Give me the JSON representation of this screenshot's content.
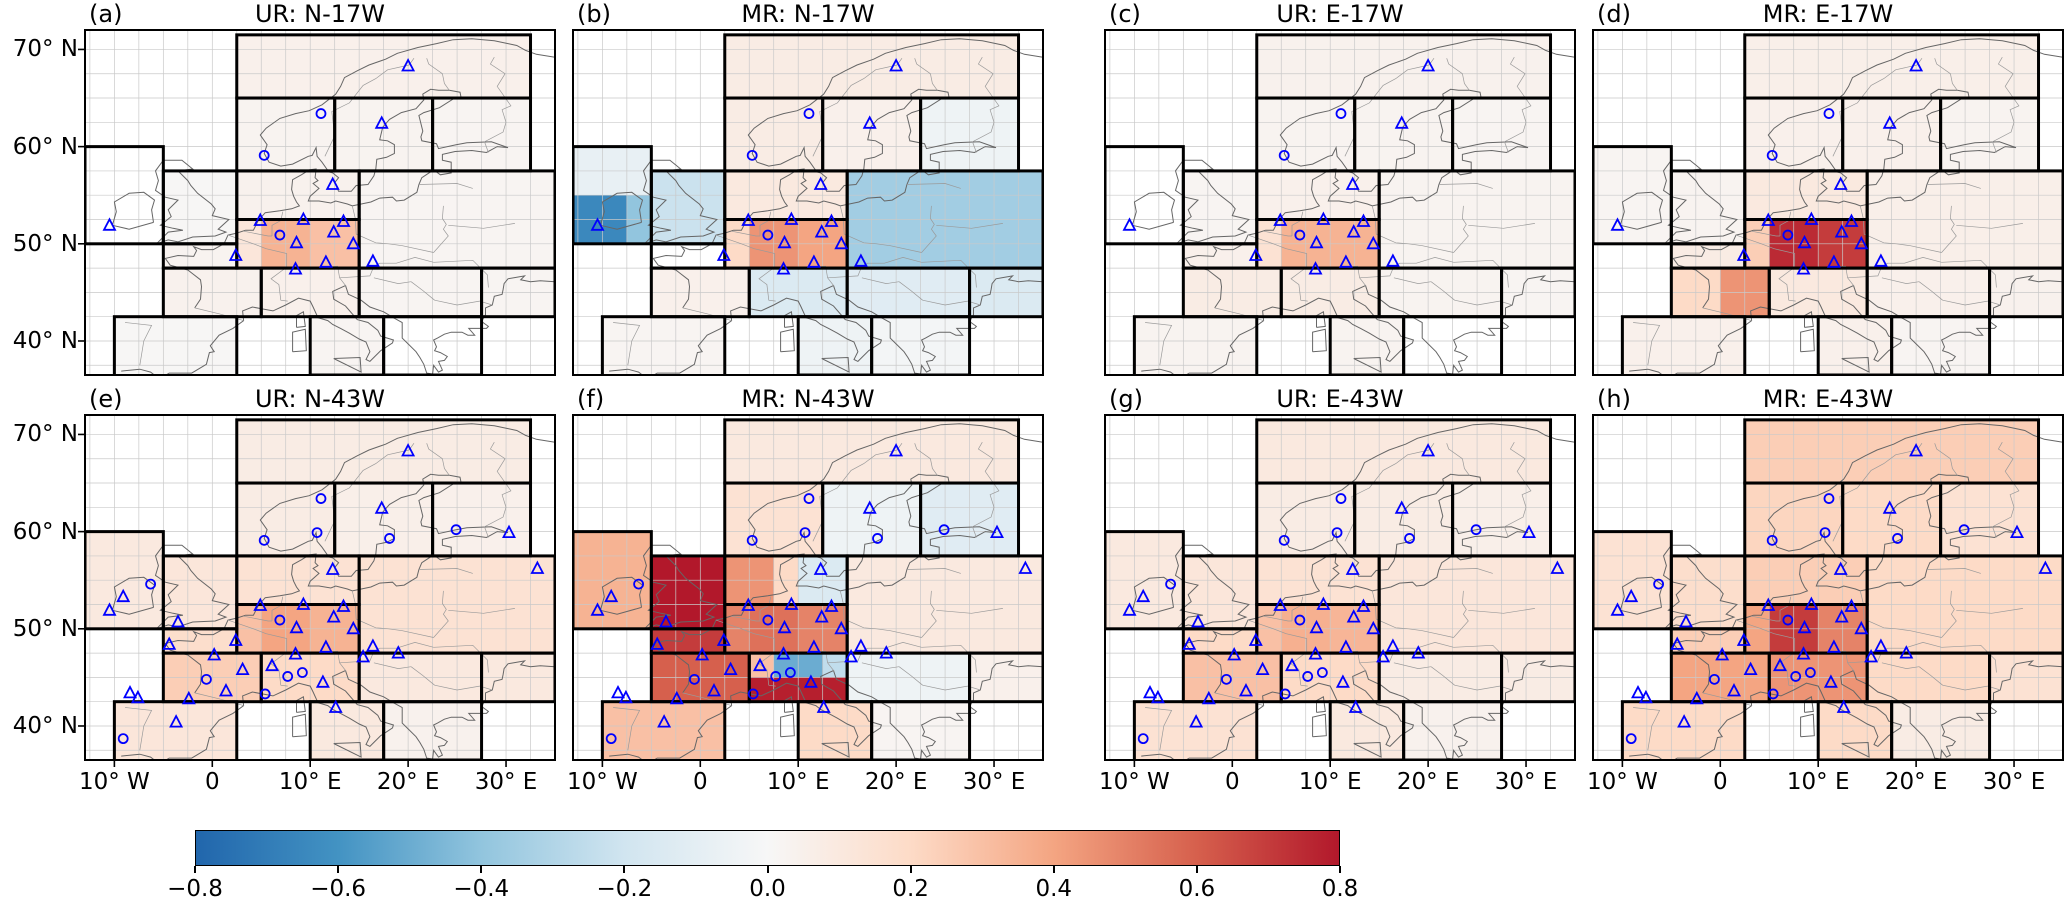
{
  "chart_data": {
    "type": "heatmap",
    "subtype": "geographic correlation maps of Europe with station markers",
    "lon_range": [
      -13,
      35
    ],
    "lat_range": [
      36.5,
      72
    ],
    "grid_step_deg": 2.5,
    "colors": {
      "background": "#ffffff",
      "marker": "#0000ff",
      "coastline": "#666666",
      "country_border": "#9a9a9a",
      "region_outline": "#000000",
      "grid_line": "#c9c9c9"
    },
    "colormap_anchors": [
      "#2166ac",
      "#4393c3",
      "#92c5de",
      "#d1e5f0",
      "#f7f7f7",
      "#fddbc7",
      "#f4a582",
      "#d6604d",
      "#b2182b"
    ],
    "colorbar": {
      "min": -0.8,
      "max": 0.8,
      "tick_values": [
        -0.8,
        -0.6,
        -0.4,
        -0.2,
        0.0,
        0.2,
        0.4,
        0.6,
        0.8
      ],
      "tick_labels": [
        "−0.8",
        "−0.6",
        "−0.4",
        "−0.2",
        "0.0",
        "0.2",
        "0.4",
        "0.6",
        "0.8"
      ]
    },
    "axes": {
      "x_ticks": [
        {
          "label": "10° W",
          "lon": -10
        },
        {
          "label": "0",
          "lon": 0
        },
        {
          "label": "10° E",
          "lon": 10
        },
        {
          "label": "20° E",
          "lon": 20
        },
        {
          "label": "30° E",
          "lon": 30
        }
      ],
      "y_ticks": [
        {
          "label": "70° N",
          "lat": 70
        },
        {
          "label": "60° N",
          "lat": 60
        },
        {
          "label": "50° N",
          "lat": 50
        },
        {
          "label": "40° N",
          "lat": 40
        }
      ]
    },
    "regions": [
      [
        -13,
        50,
        -5,
        60
      ],
      [
        -5,
        50,
        2.5,
        57.5
      ],
      [
        2.5,
        57.5,
        12.5,
        65
      ],
      [
        12.5,
        57.5,
        22.5,
        65
      ],
      [
        22.5,
        57.5,
        32.5,
        65
      ],
      [
        2.5,
        65,
        32.5,
        71.5
      ],
      [
        2.5,
        52.5,
        15,
        57.5
      ],
      [
        2.5,
        47.5,
        15,
        52.5
      ],
      [
        -5,
        42.5,
        5,
        47.5
      ],
      [
        -5,
        47.5,
        2.5,
        50
      ],
      [
        -10,
        36,
        2.5,
        42.5
      ],
      [
        5,
        42.5,
        15,
        47.5
      ],
      [
        10,
        36.5,
        17.5,
        42.5
      ],
      [
        15,
        47.5,
        35,
        57.5
      ],
      [
        15,
        42.5,
        27.5,
        47.5
      ],
      [
        17.5,
        36.5,
        27.5,
        42.5
      ],
      [
        27.5,
        42.5,
        35,
        47.5
      ]
    ],
    "stations": {
      "set17": [
        [
          "t",
          20.0,
          68.3
        ],
        [
          "c",
          11.1,
          63.4
        ],
        [
          "t",
          17.3,
          62.4
        ],
        [
          "c",
          5.3,
          59.1
        ],
        [
          "t",
          12.3,
          56.1
        ],
        [
          "t",
          -10.5,
          51.9
        ],
        [
          "t",
          4.9,
          52.4
        ],
        [
          "t",
          9.3,
          52.5
        ],
        [
          "t",
          13.4,
          52.3
        ],
        [
          "c",
          6.9,
          50.9
        ],
        [
          "t",
          12.4,
          51.2
        ],
        [
          "t",
          14.4,
          50.0
        ],
        [
          "t",
          2.4,
          48.8
        ],
        [
          "t",
          8.6,
          50.1
        ],
        [
          "t",
          11.6,
          48.1
        ],
        [
          "t",
          16.4,
          48.2
        ],
        [
          "t",
          8.5,
          47.4
        ]
      ],
      "set43_additional": [
        [
          "c",
          10.7,
          59.9
        ],
        [
          "c",
          18.1,
          59.3
        ],
        [
          "c",
          24.9,
          60.2
        ],
        [
          "t",
          30.3,
          59.9
        ],
        [
          "t",
          33.2,
          56.2
        ],
        [
          "c",
          -6.3,
          54.6
        ],
        [
          "t",
          -9.1,
          53.3
        ],
        [
          "t",
          -3.5,
          50.7
        ],
        [
          "t",
          -4.4,
          48.4
        ],
        [
          "c",
          -0.6,
          44.8
        ],
        [
          "t",
          1.4,
          43.6
        ],
        [
          "c",
          5.4,
          43.3
        ],
        [
          "t",
          3.1,
          45.8
        ],
        [
          "t",
          0.2,
          47.3
        ],
        [
          "c",
          -9.1,
          38.7
        ],
        [
          "t",
          -8.4,
          43.4
        ],
        [
          "t",
          -7.6,
          42.9
        ],
        [
          "t",
          -3.7,
          40.4
        ],
        [
          "t",
          -2.4,
          42.8
        ],
        [
          "c",
          9.2,
          45.5
        ],
        [
          "t",
          11.3,
          44.5
        ],
        [
          "t",
          12.6,
          41.9
        ],
        [
          "c",
          7.7,
          45.1
        ],
        [
          "t",
          6.1,
          46.2
        ],
        [
          "t",
          15.4,
          47.1
        ],
        [
          "t",
          19.0,
          47.5
        ]
      ]
    },
    "panels": [
      {
        "id": "a",
        "label": "(a)",
        "title": "UR: N-17W",
        "row": 0,
        "col": 0,
        "stations": "set17",
        "region_values": [
          0,
          0.01,
          0.03,
          0.03,
          0.02,
          0.05,
          0.04,
          0.12,
          0.04,
          0.03,
          0.01,
          0.05,
          0.02,
          0.02,
          0.02,
          0,
          0.02
        ],
        "extra_cells": [
          [
            5,
            47.5,
            10,
            52.5,
            0.35
          ],
          [
            10,
            47.5,
            15,
            52.5,
            0.3
          ]
        ]
      },
      {
        "id": "b",
        "label": "(b)",
        "title": "MR: N-17W",
        "row": 0,
        "col": 1,
        "stations": "set17",
        "region_values": [
          -0.08,
          -0.22,
          0.08,
          0.05,
          -0.05,
          0.08,
          0.1,
          0.2,
          0.05,
          0,
          0.02,
          -0.15,
          -0.05,
          -0.35,
          -0.12,
          -0.02,
          -0.15
        ],
        "extra_cells": [
          [
            -13,
            50,
            -7.5,
            55,
            -0.65
          ],
          [
            -7.5,
            50,
            -5,
            55,
            -0.4
          ],
          [
            5,
            47.5,
            10,
            52.5,
            0.45
          ],
          [
            10,
            47.5,
            15,
            52.5,
            0.4
          ]
        ]
      },
      {
        "id": "c",
        "label": "(c)",
        "title": "UR: E-17W",
        "row": 0,
        "col": 2,
        "stations": "set17",
        "region_values": [
          0,
          0.02,
          0.03,
          0.03,
          0.02,
          0.04,
          0.05,
          0.15,
          0.08,
          0.05,
          0.03,
          0.08,
          0.03,
          0.03,
          0.03,
          0,
          0.02
        ],
        "extra_cells": [
          [
            5,
            47.5,
            10,
            52.5,
            0.35
          ],
          [
            10,
            47.5,
            15,
            52.5,
            0.35
          ]
        ]
      },
      {
        "id": "d",
        "label": "(d)",
        "title": "MR: E-17W",
        "row": 0,
        "col": 3,
        "stations": "set17",
        "region_values": [
          0.02,
          0.03,
          0.05,
          0.05,
          0.03,
          0.06,
          0.1,
          0.25,
          0.2,
          0.08,
          0.05,
          0.1,
          0.05,
          0.06,
          0.05,
          0.02,
          0.04
        ],
        "extra_cells": [
          [
            5,
            47.5,
            10,
            52.5,
            0.75
          ],
          [
            10,
            47.5,
            15,
            52.5,
            0.7
          ],
          [
            0,
            42.5,
            5,
            47.5,
            0.45
          ]
        ]
      },
      {
        "id": "e",
        "label": "(e)",
        "title": "UR: N-43W",
        "row": 1,
        "col": 0,
        "stations": "set43",
        "region_values": [
          0.1,
          0.12,
          0.08,
          0.06,
          0.05,
          0.08,
          0.15,
          0.3,
          0.25,
          0.18,
          0.12,
          0.2,
          0.1,
          0.15,
          0.1,
          0.04,
          0.1
        ],
        "extra_cells": [
          [
            5,
            47.5,
            10,
            52.5,
            0.4
          ],
          [
            10,
            47.5,
            15,
            52.5,
            0.35
          ]
        ]
      },
      {
        "id": "f",
        "label": "(f)",
        "title": "MR: N-43W",
        "row": 1,
        "col": 1,
        "stations": "set43",
        "region_values": [
          0.35,
          0.8,
          0.15,
          -0.05,
          -0.12,
          0.1,
          0.2,
          0.5,
          0.6,
          0.7,
          0.3,
          0.3,
          0.2,
          0.1,
          -0.05,
          0.02,
          0.05
        ],
        "extra_cells": [
          [
            2.5,
            52.5,
            7.5,
            57.5,
            0.45
          ],
          [
            10,
            52.5,
            15,
            57.5,
            -0.15
          ],
          [
            5,
            47.5,
            10,
            52.5,
            0.55
          ],
          [
            5,
            42.5,
            15,
            45,
            0.78
          ],
          [
            7.5,
            45,
            12.5,
            47.5,
            -0.5
          ],
          [
            12.5,
            45,
            15,
            47.5,
            -0.25
          ]
        ]
      },
      {
        "id": "g",
        "label": "(g)",
        "title": "UR: E-43W",
        "row": 1,
        "col": 2,
        "stations": "set43",
        "region_values": [
          0.1,
          0.12,
          0.08,
          0.08,
          0.06,
          0.1,
          0.15,
          0.3,
          0.3,
          0.2,
          0.15,
          0.2,
          0.1,
          0.12,
          0.08,
          0.04,
          0.08
        ],
        "extra_cells": [
          [
            5,
            47.5,
            10,
            52.5,
            0.36
          ],
          [
            10,
            47.5,
            15,
            52.5,
            0.34
          ]
        ]
      },
      {
        "id": "h",
        "label": "(h)",
        "title": "MR: E-43W",
        "row": 1,
        "col": 3,
        "stations": "set43",
        "region_values": [
          0.15,
          0.18,
          0.22,
          0.2,
          0.15,
          0.25,
          0.25,
          0.4,
          0.4,
          0.25,
          0.2,
          0.45,
          0.2,
          0.2,
          0.2,
          0.08,
          0.15
        ],
        "extra_cells": [
          [
            5,
            47.5,
            10,
            52.5,
            0.7
          ],
          [
            10,
            47.5,
            15,
            52.5,
            0.5
          ]
        ]
      }
    ]
  }
}
